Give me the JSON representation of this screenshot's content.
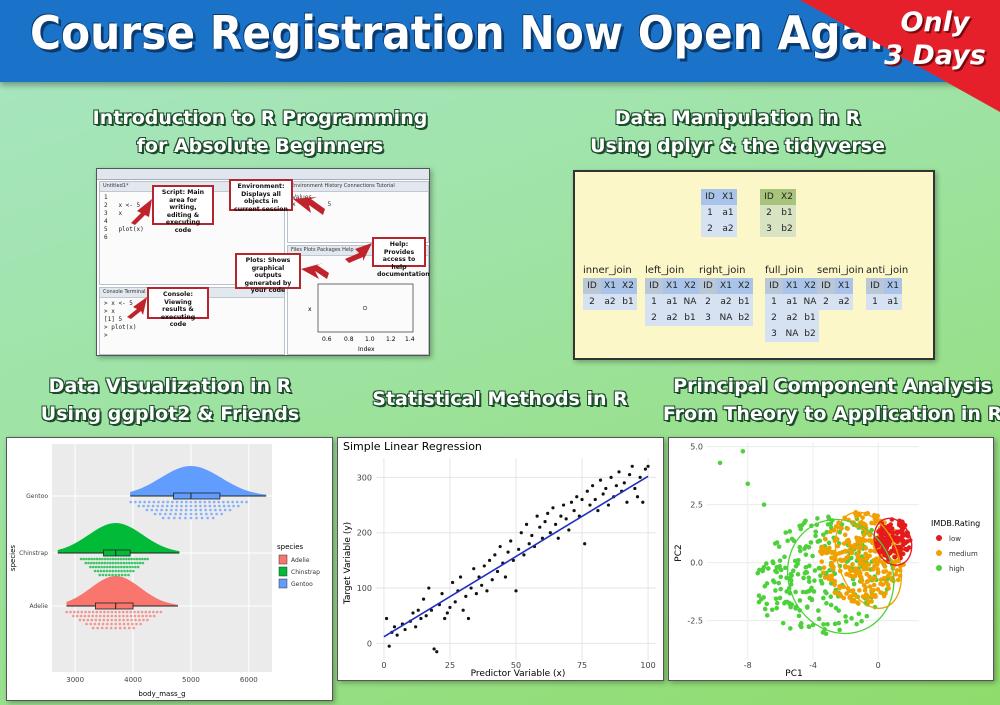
{
  "banner": {
    "title": "Course Registration Now Open Again",
    "corner_line1": "Only",
    "corner_line2": "3 Days",
    "color": "#1a73c9",
    "accent": "#e6202b"
  },
  "courses": [
    {
      "line1": "Introduction to R Programming",
      "line2": "for Absolute Beginners"
    },
    {
      "line1": "Data Manipulation in R",
      "line2": "Using dplyr & the tidyverse"
    },
    {
      "line1": "Data Visualization in R",
      "line2": "Using ggplot2 & Friends"
    },
    {
      "line1": "Statistical Methods in R",
      "line2": ""
    },
    {
      "line1": "Principal Component Analysis",
      "line2": "From Theory to Application in R"
    }
  ],
  "rstudio": {
    "tabs_env": "Environment   History   Connections   Tutorial",
    "tabs_files": "Files   Plots   Packages   Help",
    "tabs_console": "Console   Terminal",
    "script_code": "1\n2   x <- 5\n3   x\n4\n5   plot(x)\n6",
    "console_code": "> x <- 5\n> x\n[1] 5\n> plot(x)\n>",
    "env_label": "Values",
    "env_var": "x",
    "env_value": "5",
    "plot_xlabel": "Index",
    "plot_ylabel": "x",
    "plot_ticks": [
      "0.6",
      "0.8",
      "1.0",
      "1.2",
      "1.4"
    ],
    "callouts": {
      "script": "Script: Main area for writing, editing & executing code",
      "environment": "Environment: Displays all objects in current session",
      "help": "Help: Provides access to help documentation",
      "plots": "Plots: Shows graphical outputs generated by your code",
      "console": "Console: Viewing results & executing code"
    }
  },
  "dplyr": {
    "x1": {
      "headers": [
        "ID",
        "X1"
      ],
      "rows": [
        [
          "1",
          "a1"
        ],
        [
          "2",
          "a2"
        ]
      ]
    },
    "x2": {
      "headers": [
        "ID",
        "X2"
      ],
      "rows": [
        [
          "2",
          "b1"
        ],
        [
          "3",
          "b2"
        ]
      ]
    },
    "joins": [
      {
        "name": "inner_join",
        "headers": [
          "ID",
          "X1",
          "X2"
        ],
        "rows": [
          [
            "2",
            "a2",
            "b1"
          ]
        ]
      },
      {
        "name": "left_join",
        "headers": [
          "ID",
          "X1",
          "X2"
        ],
        "rows": [
          [
            "1",
            "a1",
            "NA"
          ],
          [
            "2",
            "a2",
            "b1"
          ]
        ]
      },
      {
        "name": "right_join",
        "headers": [
          "ID",
          "X1",
          "X2"
        ],
        "rows": [
          [
            "2",
            "a2",
            "b1"
          ],
          [
            "3",
            "NA",
            "b2"
          ]
        ]
      },
      {
        "name": "full_join",
        "headers": [
          "ID",
          "X1",
          "X2"
        ],
        "rows": [
          [
            "1",
            "a1",
            "NA"
          ],
          [
            "2",
            "a2",
            "b1"
          ],
          [
            "3",
            "NA",
            "b2"
          ]
        ]
      },
      {
        "name": "semi_join",
        "headers": [
          "ID",
          "X1"
        ],
        "rows": [
          [
            "2",
            "a2"
          ]
        ]
      },
      {
        "name": "anti_join",
        "headers": [
          "ID",
          "X1"
        ],
        "rows": [
          [
            "1",
            "a1"
          ]
        ]
      }
    ]
  },
  "chart_data": [
    {
      "type": "raincloud",
      "categories": [
        "Adelie",
        "Chinstrap",
        "Gentoo"
      ],
      "colors": [
        "#f8766d",
        "#00ba38",
        "#619cff"
      ],
      "medians": [
        3700,
        3700,
        5000
      ],
      "q1": [
        3350,
        3490,
        4700
      ],
      "q3": [
        4000,
        3950,
        5500
      ],
      "mins": [
        2850,
        2700,
        3950
      ],
      "maxs": [
        4775,
        4800,
        6300
      ],
      "xlabel": "body_mass_g",
      "ylabel": "species",
      "x_ticks": [
        3000,
        4000,
        5000,
        6000
      ],
      "xlim": [
        2600,
        6400
      ],
      "legend_title": "species",
      "legend": [
        "Adelie",
        "Chinstrap",
        "Gentoo"
      ]
    },
    {
      "type": "scatter",
      "title": "Simple Linear Regression",
      "xlabel": "Predictor Variable (x)",
      "ylabel": "Target Variable (y)",
      "x_ticks": [
        0,
        25,
        50,
        75,
        100
      ],
      "y_ticks": [
        0,
        100,
        200,
        300
      ],
      "xlim": [
        -3,
        103
      ],
      "ylim": [
        -30,
        335
      ],
      "fit": {
        "intercept": 12,
        "slope": 2.9
      },
      "points": [
        [
          1,
          45
        ],
        [
          2,
          -5
        ],
        [
          3,
          20
        ],
        [
          4,
          30
        ],
        [
          5,
          15
        ],
        [
          7,
          35
        ],
        [
          8,
          25
        ],
        [
          10,
          40
        ],
        [
          11,
          55
        ],
        [
          12,
          30
        ],
        [
          13,
          60
        ],
        [
          14,
          45
        ],
        [
          15,
          80
        ],
        [
          16,
          50
        ],
        [
          17,
          100
        ],
        [
          18,
          60
        ],
        [
          19,
          -10
        ],
        [
          20,
          -15
        ],
        [
          21,
          70
        ],
        [
          22,
          90
        ],
        [
          23,
          45
        ],
        [
          24,
          55
        ],
        [
          25,
          65
        ],
        [
          26,
          110
        ],
        [
          27,
          75
        ],
        [
          28,
          95
        ],
        [
          29,
          120
        ],
        [
          30,
          60
        ],
        [
          31,
          85
        ],
        [
          32,
          45
        ],
        [
          33,
          100
        ],
        [
          34,
          135
        ],
        [
          35,
          90
        ],
        [
          36,
          120
        ],
        [
          37,
          105
        ],
        [
          38,
          140
        ],
        [
          39,
          95
        ],
        [
          40,
          150
        ],
        [
          41,
          115
        ],
        [
          42,
          160
        ],
        [
          43,
          130
        ],
        [
          44,
          175
        ],
        [
          45,
          145
        ],
        [
          46,
          120
        ],
        [
          47,
          165
        ],
        [
          48,
          185
        ],
        [
          49,
          150
        ],
        [
          50,
          95
        ],
        [
          51,
          170
        ],
        [
          52,
          200
        ],
        [
          53,
          160
        ],
        [
          54,
          215
        ],
        [
          55,
          180
        ],
        [
          56,
          195
        ],
        [
          57,
          175
        ],
        [
          58,
          230
        ],
        [
          59,
          210
        ],
        [
          60,
          190
        ],
        [
          61,
          220
        ],
        [
          62,
          235
        ],
        [
          63,
          200
        ],
        [
          64,
          245
        ],
        [
          65,
          215
        ],
        [
          66,
          190
        ],
        [
          67,
          230
        ],
        [
          68,
          250
        ],
        [
          69,
          225
        ],
        [
          70,
          205
        ],
        [
          71,
          255
        ],
        [
          72,
          240
        ],
        [
          73,
          265
        ],
        [
          74,
          230
        ],
        [
          75,
          260
        ],
        [
          76,
          180
        ],
        [
          77,
          275
        ],
        [
          78,
          250
        ],
        [
          79,
          285
        ],
        [
          80,
          260
        ],
        [
          81,
          240
        ],
        [
          82,
          295
        ],
        [
          83,
          270
        ],
        [
          84,
          280
        ],
        [
          85,
          250
        ],
        [
          86,
          300
        ],
        [
          87,
          265
        ],
        [
          88,
          285
        ],
        [
          89,
          310
        ],
        [
          90,
          275
        ],
        [
          91,
          290
        ],
        [
          92,
          255
        ],
        [
          93,
          305
        ],
        [
          94,
          320
        ],
        [
          95,
          280
        ],
        [
          96,
          265
        ],
        [
          97,
          300
        ],
        [
          98,
          255
        ],
        [
          99,
          315
        ],
        [
          100,
          320
        ]
      ]
    },
    {
      "type": "scatter",
      "xlabel": "PC1",
      "ylabel": "PC2",
      "x_ticks": [
        -8,
        -4,
        0
      ],
      "y_ticks": [
        -2.5,
        0.0,
        2.5,
        5.0
      ],
      "y_tick_labels": [
        "-2.5",
        "0.0",
        "2.5",
        "5.0"
      ],
      "xlim": [
        -10.5,
        2.5
      ],
      "ylim": [
        -4.2,
        5.2
      ],
      "legend_title": "IMDB.Rating",
      "series": [
        {
          "name": "low",
          "color": "#e41a1c"
        },
        {
          "name": "medium",
          "color": "#f0a000"
        },
        {
          "name": "high",
          "color": "#4dd13a"
        }
      ]
    }
  ]
}
